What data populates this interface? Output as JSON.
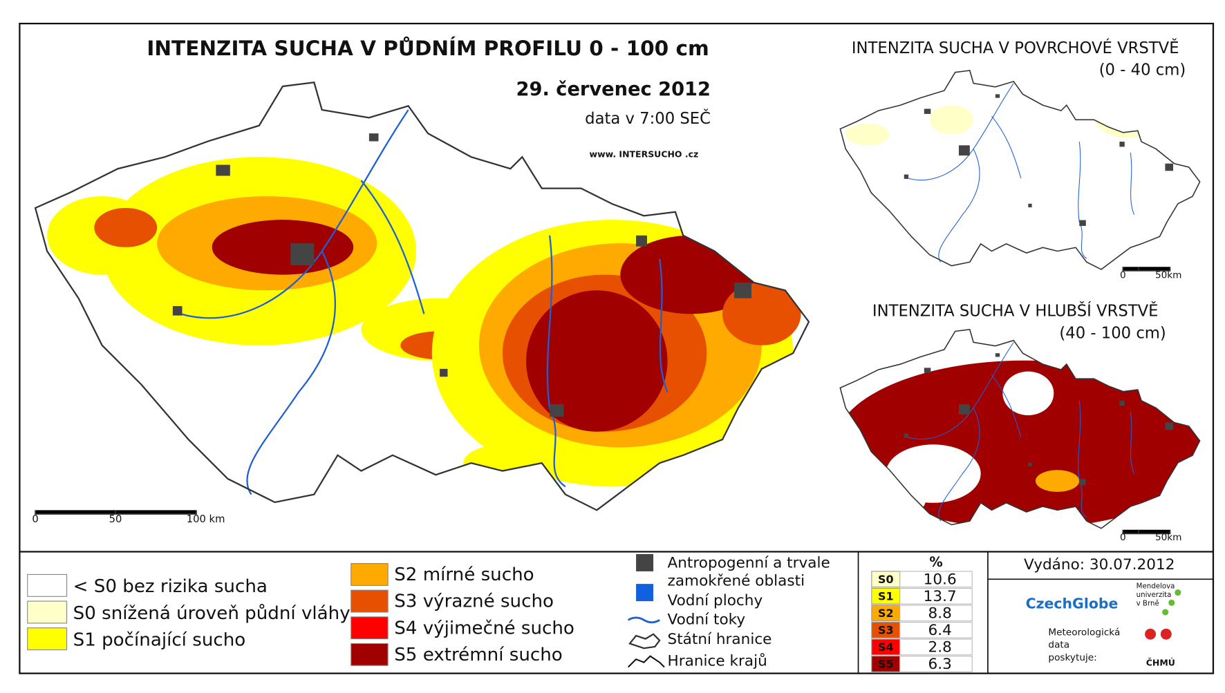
{
  "main_map": {
    "title": "INTENZITA SUCHA V PŮDNÍM PROFILU 0 - 100 cm",
    "date": "29. červenec 2012",
    "note": "data v 7:00 SEČ",
    "website": "www. INTERSUCHO .cz",
    "scale": [
      "0",
      "50",
      "100 km"
    ]
  },
  "top_map": {
    "title": "INTENZITA SUCHA V POVRCHOVÉ VRSTVĚ",
    "subtitle": "(0 - 40 cm)",
    "scale": [
      "0",
      "50km"
    ]
  },
  "bottom_map": {
    "title": "INTENZITA SUCHA V HLUBŠÍ VRSTVĚ",
    "subtitle": "(40 - 100 cm)",
    "scale": [
      "0",
      "50km"
    ]
  },
  "legend": {
    "classes": [
      {
        "label": "< S0 bez rizika sucha",
        "color": "#ffffff"
      },
      {
        "label": "S0 snížená úroveň půdní vláhy",
        "color": "#ffffc8"
      },
      {
        "label": "S1 počínající sucho",
        "color": "#ffff00"
      },
      {
        "label": "S2 mírné sucho",
        "color": "#ffaa00"
      },
      {
        "label": "S3 výrazné sucho",
        "color": "#e65000"
      },
      {
        "label": "S4 výjimečné sucho",
        "color": "#ff0000"
      },
      {
        "label": "S5 extrémní sucho",
        "color": "#a00000"
      }
    ],
    "symbols": [
      {
        "lines": [
          "Antropogenní a trvale",
          "zamokřené oblasti"
        ]
      },
      {
        "lines": [
          "Vodní plochy"
        ]
      },
      {
        "lines": [
          "Vodní toky"
        ]
      },
      {
        "lines": [
          "Státní hranice"
        ]
      },
      {
        "lines": [
          "Hranice krajů"
        ]
      }
    ]
  },
  "table": {
    "header": "%",
    "rows": [
      {
        "class": "S0",
        "color": "#ffffc8",
        "value": 10.6
      },
      {
        "class": "S1",
        "color": "#ffff00",
        "value": 13.7
      },
      {
        "class": "S2",
        "color": "#ffaa00",
        "value": 8.8
      },
      {
        "class": "S3",
        "color": "#e65000",
        "value": 6.4
      },
      {
        "class": "S4",
        "color": "#ff0000",
        "value": 2.8
      },
      {
        "class": "S5",
        "color": "#a00000",
        "value": 6.3
      }
    ]
  },
  "issued": "Vydáno: 30.07.2012",
  "logos": {
    "czechglobe": "CzechGlobe",
    "mendel": [
      "Mendelova",
      "univerzita",
      "v Brně"
    ],
    "meteo": [
      "Meteorologická",
      "data",
      "poskytuje:"
    ],
    "chmu": "ČHMÚ"
  }
}
